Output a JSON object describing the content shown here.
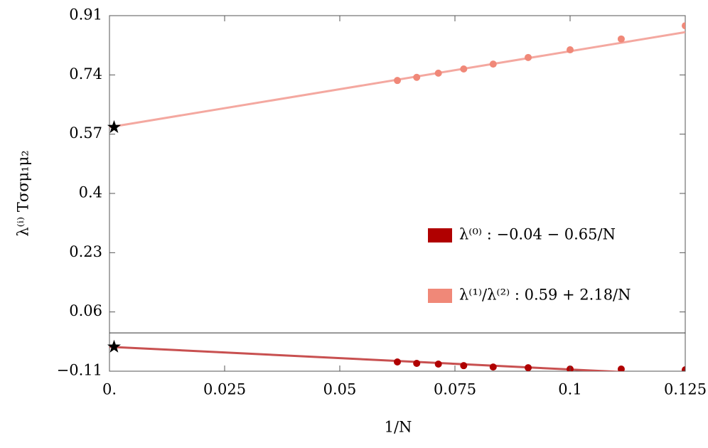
{
  "chart_data": {
    "type": "scatter",
    "x_label": "1/N",
    "y_label": "λ⁽ⁱ⁾ Tσσμ₁μ₂",
    "xlim": [
      0,
      0.125
    ],
    "ylim": [
      -0.11,
      0.91
    ],
    "xticks": [
      {
        "value": 0,
        "label": "0."
      },
      0.025,
      0.05,
      0.075,
      0.1,
      0.125
    ],
    "yticks": [
      {
        "value": -0.11,
        "label": "−0.11"
      },
      0.06,
      0.23,
      0.4,
      0.57,
      0.74,
      0.91
    ],
    "zero_line": true,
    "star_x": 0.001,
    "legend": "right",
    "series": [
      {
        "name": "λ⁽⁰⁾ : −0.04 − 0.65/N",
        "color": "#b00000",
        "fit_color": "#c85050",
        "fit": {
          "intercept": -0.04,
          "slope": -0.65
        },
        "x": [
          0.0625,
          0.0667,
          0.0714,
          0.0769,
          0.0833,
          0.0909,
          0.1,
          0.1111,
          0.125
        ],
        "values": [
          -0.0835,
          -0.0876,
          -0.0896,
          -0.094,
          -0.098,
          -0.1,
          -0.104,
          -0.104,
          -0.106
        ]
      },
      {
        "name": "λ⁽¹⁾/λ⁽²⁾ : 0.59 + 2.18/N",
        "color": "#f08878",
        "fit_color": "#f4a8a0",
        "fit": {
          "intercept": 0.59,
          "slope": 2.18
        },
        "x": [
          0.0625,
          0.0667,
          0.0714,
          0.0769,
          0.0833,
          0.0909,
          0.1,
          0.1111,
          0.125
        ],
        "values": [
          0.724,
          0.733,
          0.745,
          0.757,
          0.771,
          0.79,
          0.812,
          0.843,
          0.881
        ]
      }
    ]
  }
}
